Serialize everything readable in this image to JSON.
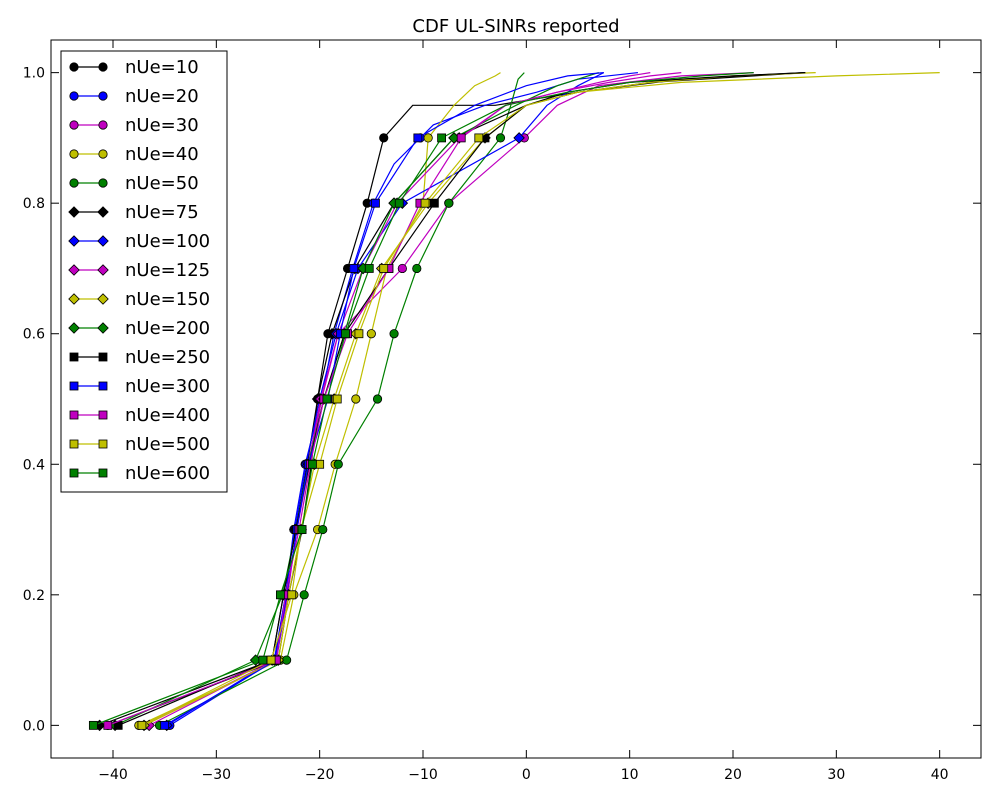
{
  "chart_data": {
    "type": "line",
    "title": "CDF UL-SINRs reported",
    "xlabel": "",
    "ylabel": "",
    "xlim": [
      -46,
      44
    ],
    "ylim": [
      -0.05,
      1.05
    ],
    "x_ticks": [
      -40,
      -30,
      -20,
      -10,
      0,
      10,
      20,
      30,
      40
    ],
    "x_tick_labels": [
      "−40",
      "−30",
      "−20",
      "−10",
      "0",
      "10",
      "20",
      "30",
      "40"
    ],
    "y_ticks": [
      0.0,
      0.2,
      0.4,
      0.6,
      0.8,
      1.0
    ],
    "y_tick_labels": [
      "0.0",
      "0.2",
      "0.4",
      "0.6",
      "0.8",
      "1.0"
    ],
    "grid": false,
    "legend_position": "top-left",
    "marker_levels": [
      0.0,
      0.1,
      0.2,
      0.3,
      0.4,
      0.5,
      0.6,
      0.7,
      0.8,
      0.9
    ],
    "series": [
      {
        "name": "nUe=10",
        "color": "#000000",
        "marker": "circle",
        "x": [
          -40.5,
          -24,
          -23,
          -21.7,
          -20.8,
          -20.2,
          -19.2,
          -17.3,
          -15.4,
          -13.8,
          -11,
          -8,
          -3,
          5,
          15,
          27
        ],
        "y": [
          0.0,
          0.1,
          0.2,
          0.3,
          0.4,
          0.5,
          0.6,
          0.7,
          0.8,
          0.9,
          0.95,
          0.95,
          0.95,
          0.97,
          0.99,
          1.0
        ]
      },
      {
        "name": "nUe=20",
        "color": "#0000ff",
        "marker": "circle",
        "x": [
          -34.5,
          -24.3,
          -23.3,
          -22.5,
          -21.4,
          -19.8,
          -18.6,
          -16.8,
          -14.8,
          -12.8,
          -9,
          -4,
          1,
          5,
          10.8
        ],
        "y": [
          0.0,
          0.1,
          0.2,
          0.3,
          0.4,
          0.5,
          0.6,
          0.7,
          0.8,
          0.86,
          0.92,
          0.95,
          0.97,
          0.99,
          1.0
        ]
      },
      {
        "name": "nUe=30",
        "color": "#bf00bf",
        "marker": "circle",
        "x": [
          -37,
          -24.2,
          -23.1,
          -22.2,
          -21,
          -19.8,
          -18.2,
          -12,
          -7.5,
          -0.2,
          3,
          7,
          15,
          22
        ],
        "y": [
          0.0,
          0.1,
          0.2,
          0.3,
          0.4,
          0.5,
          0.6,
          0.7,
          0.8,
          0.9,
          0.95,
          0.98,
          0.995,
          1.0
        ]
      },
      {
        "name": "nUe=40",
        "color": "#bfbf00",
        "marker": "circle",
        "x": [
          -37.5,
          -23.8,
          -22.5,
          -20.2,
          -18.5,
          -16.5,
          -15,
          -13.5,
          -10,
          -9.5,
          -7,
          -5,
          -3,
          -2.5
        ],
        "y": [
          0.0,
          0.1,
          0.2,
          0.3,
          0.4,
          0.5,
          0.6,
          0.7,
          0.8,
          0.9,
          0.95,
          0.98,
          0.995,
          1.0
        ]
      },
      {
        "name": "nUe=50",
        "color": "#008000",
        "marker": "circle",
        "x": [
          -35.5,
          -23.2,
          -21.5,
          -19.7,
          -18.2,
          -14.4,
          -12.8,
          -10.6,
          -7.5,
          -2.5,
          -1.5,
          -0.8,
          -0.2
        ],
        "y": [
          0.0,
          0.1,
          0.2,
          0.3,
          0.4,
          0.5,
          0.6,
          0.7,
          0.8,
          0.9,
          0.95,
          0.99,
          1.0
        ]
      },
      {
        "name": "nUe=75",
        "color": "#000000",
        "marker": "diamond",
        "x": [
          -41.3,
          -24.6,
          -23.5,
          -22.3,
          -21.2,
          -20.2,
          -18.8,
          -16.6,
          -12.8,
          -7,
          0,
          5,
          12,
          22,
          27
        ],
        "y": [
          0.0,
          0.1,
          0.2,
          0.3,
          0.4,
          0.5,
          0.6,
          0.7,
          0.8,
          0.9,
          0.95,
          0.97,
          0.985,
          0.995,
          1.0
        ]
      },
      {
        "name": "nUe=100",
        "color": "#0000ff",
        "marker": "diamond",
        "x": [
          -34.8,
          -24.4,
          -23.3,
          -22.4,
          -21.3,
          -20,
          -18.4,
          -16.3,
          -12,
          -0.7,
          2,
          5,
          7.5
        ],
        "y": [
          0.0,
          0.1,
          0.2,
          0.3,
          0.4,
          0.5,
          0.6,
          0.7,
          0.8,
          0.9,
          0.95,
          0.98,
          1.0
        ]
      },
      {
        "name": "nUe=125",
        "color": "#bf00bf",
        "marker": "diamond",
        "x": [
          -36.5,
          -24.2,
          -23.2,
          -22.2,
          -21.1,
          -19.9,
          -18.2,
          -15.8,
          -12.5,
          -6.5,
          -2,
          3,
          7,
          10,
          12
        ],
        "y": [
          0.0,
          0.1,
          0.2,
          0.3,
          0.4,
          0.5,
          0.6,
          0.7,
          0.8,
          0.9,
          0.95,
          0.97,
          0.985,
          0.995,
          1.0
        ]
      },
      {
        "name": "nUe=150",
        "color": "#bfbf00",
        "marker": "diamond",
        "x": [
          -37,
          -24,
          -23,
          -21.8,
          -20.5,
          -18.6,
          -16.5,
          -14,
          -9.5,
          -4,
          0,
          5,
          12,
          20,
          28
        ],
        "y": [
          0.0,
          0.1,
          0.2,
          0.3,
          0.4,
          0.5,
          0.6,
          0.7,
          0.8,
          0.9,
          0.95,
          0.97,
          0.985,
          0.995,
          1.0
        ]
      },
      {
        "name": "nUe=200",
        "color": "#008000",
        "marker": "diamond",
        "x": [
          -39.8,
          -26.2,
          -23.6,
          -22.3,
          -21.1,
          -19.6,
          -17.6,
          -15.8,
          -12.8,
          -7,
          -1,
          3,
          7
        ],
        "y": [
          0.0,
          0.1,
          0.2,
          0.3,
          0.4,
          0.5,
          0.6,
          0.7,
          0.8,
          0.9,
          0.95,
          0.98,
          1.0
        ]
      },
      {
        "name": "nUe=250",
        "color": "#000000",
        "marker": "square",
        "x": [
          -39.5,
          -24.6,
          -23.5,
          -22.3,
          -21,
          -19.6,
          -17.6,
          -13.3,
          -8.9,
          -4,
          0,
          4,
          10,
          20,
          27
        ],
        "y": [
          0.0,
          0.1,
          0.2,
          0.3,
          0.4,
          0.5,
          0.6,
          0.7,
          0.8,
          0.9,
          0.95,
          0.97,
          0.985,
          0.995,
          1.0
        ]
      },
      {
        "name": "nUe=300",
        "color": "#0000ff",
        "marker": "square",
        "x": [
          -35,
          -24.2,
          -23.2,
          -22.2,
          -21.1,
          -19.2,
          -18,
          -16.7,
          -14.6,
          -10.5,
          -5,
          0,
          4,
          7.5
        ],
        "y": [
          0.0,
          0.1,
          0.2,
          0.3,
          0.4,
          0.5,
          0.6,
          0.7,
          0.8,
          0.9,
          0.95,
          0.98,
          0.995,
          1.0
        ]
      },
      {
        "name": "nUe=400",
        "color": "#bf00bf",
        "marker": "square",
        "x": [
          -40.5,
          -24.2,
          -23.3,
          -22,
          -20.9,
          -19.6,
          -17.3,
          -13.3,
          -10.3,
          -6.3,
          -2,
          3,
          8,
          12,
          15
        ],
        "y": [
          0.0,
          0.1,
          0.2,
          0.3,
          0.4,
          0.5,
          0.6,
          0.7,
          0.8,
          0.9,
          0.95,
          0.97,
          0.985,
          0.995,
          1.0
        ]
      },
      {
        "name": "nUe=500",
        "color": "#bfbf00",
        "marker": "square",
        "x": [
          -37.2,
          -24.7,
          -22.7,
          -21.8,
          -20,
          -18.3,
          -16.2,
          -13.8,
          -9.8,
          -4.6,
          0,
          5,
          15,
          30,
          40
        ],
        "y": [
          0.0,
          0.1,
          0.2,
          0.3,
          0.4,
          0.5,
          0.6,
          0.7,
          0.8,
          0.9,
          0.95,
          0.97,
          0.985,
          0.995,
          1.0
        ]
      },
      {
        "name": "nUe=600",
        "color": "#008000",
        "marker": "square",
        "x": [
          -41.9,
          -25.5,
          -23.8,
          -21.7,
          -20.7,
          -19.3,
          -17.5,
          -15.2,
          -12.3,
          -8.2,
          -2,
          4,
          10,
          17,
          22
        ],
        "y": [
          0.0,
          0.1,
          0.2,
          0.3,
          0.4,
          0.5,
          0.6,
          0.7,
          0.8,
          0.9,
          0.95,
          0.97,
          0.985,
          0.995,
          1.0
        ]
      }
    ]
  }
}
